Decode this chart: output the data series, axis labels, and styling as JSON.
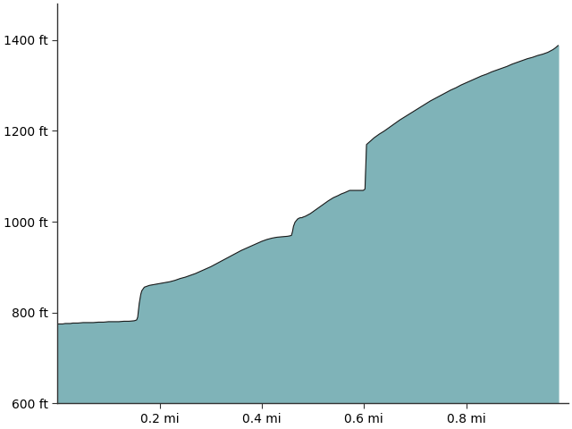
{
  "title": "",
  "xlim": [
    0,
    1.0
  ],
  "ylim": [
    600,
    1480
  ],
  "xticks": [
    0.2,
    0.4,
    0.6,
    0.8
  ],
  "xtick_labels": [
    "0.2 mi",
    "0.4 mi",
    "0.6 mi",
    "0.8 mi"
  ],
  "yticks": [
    600,
    800,
    1000,
    1200,
    1400
  ],
  "ytick_labels": [
    "600 ft",
    "800 ft",
    "1000 ft",
    "1200 ft",
    "1400 ft"
  ],
  "fill_color": "#7fb3b8",
  "line_color": "#1a1a1a",
  "background_color": "#ffffff",
  "profile_x": [
    0.0,
    0.005,
    0.01,
    0.015,
    0.02,
    0.025,
    0.03,
    0.04,
    0.05,
    0.06,
    0.07,
    0.08,
    0.09,
    0.1,
    0.11,
    0.12,
    0.13,
    0.14,
    0.15,
    0.153,
    0.155,
    0.157,
    0.16,
    0.163,
    0.165,
    0.168,
    0.17,
    0.175,
    0.18,
    0.185,
    0.19,
    0.195,
    0.2,
    0.205,
    0.21,
    0.22,
    0.23,
    0.24,
    0.25,
    0.26,
    0.27,
    0.28,
    0.29,
    0.3,
    0.31,
    0.32,
    0.33,
    0.34,
    0.35,
    0.36,
    0.37,
    0.38,
    0.39,
    0.4,
    0.41,
    0.42,
    0.43,
    0.44,
    0.45,
    0.455,
    0.458,
    0.46,
    0.462,
    0.465,
    0.468,
    0.47,
    0.473,
    0.476,
    0.479,
    0.48,
    0.485,
    0.49,
    0.495,
    0.5,
    0.505,
    0.51,
    0.515,
    0.52,
    0.53,
    0.54,
    0.55,
    0.555,
    0.56,
    0.562,
    0.564,
    0.566,
    0.568,
    0.57,
    0.572,
    0.574,
    0.576,
    0.578,
    0.58,
    0.582,
    0.584,
    0.586,
    0.588,
    0.59,
    0.592,
    0.595,
    0.598,
    0.6,
    0.602,
    0.605,
    0.61,
    0.62,
    0.63,
    0.64,
    0.65,
    0.66,
    0.67,
    0.68,
    0.69,
    0.7,
    0.71,
    0.72,
    0.73,
    0.74,
    0.75,
    0.76,
    0.77,
    0.78,
    0.79,
    0.8,
    0.81,
    0.82,
    0.83,
    0.84,
    0.85,
    0.86,
    0.87,
    0.88,
    0.89,
    0.9,
    0.91,
    0.92,
    0.93,
    0.94,
    0.95,
    0.96,
    0.965,
    0.97,
    0.975,
    0.98
  ],
  "profile_y": [
    775,
    775,
    775,
    776,
    776,
    776,
    777,
    777,
    778,
    778,
    778,
    779,
    779,
    780,
    780,
    780,
    781,
    781,
    782,
    783,
    784,
    790,
    820,
    840,
    848,
    853,
    856,
    858,
    860,
    861,
    862,
    863,
    864,
    865,
    866,
    868,
    871,
    875,
    878,
    882,
    886,
    891,
    896,
    901,
    907,
    913,
    919,
    925,
    931,
    937,
    942,
    947,
    952,
    957,
    961,
    964,
    966,
    967,
    968,
    969,
    970,
    978,
    990,
    999,
    1003,
    1006,
    1008,
    1009,
    1009,
    1010,
    1012,
    1015,
    1018,
    1022,
    1026,
    1030,
    1034,
    1038,
    1046,
    1053,
    1058,
    1061,
    1063,
    1064,
    1065,
    1066,
    1067,
    1068,
    1069,
    1069,
    1069,
    1069,
    1069,
    1069,
    1069,
    1069,
    1069,
    1069,
    1069,
    1069,
    1069,
    1070,
    1072,
    1170,
    1175,
    1185,
    1193,
    1200,
    1208,
    1216,
    1224,
    1231,
    1238,
    1245,
    1252,
    1259,
    1266,
    1272,
    1278,
    1284,
    1290,
    1295,
    1301,
    1306,
    1311,
    1316,
    1321,
    1325,
    1330,
    1334,
    1338,
    1342,
    1347,
    1351,
    1355,
    1359,
    1362,
    1366,
    1369,
    1373,
    1376,
    1379,
    1383,
    1388
  ]
}
